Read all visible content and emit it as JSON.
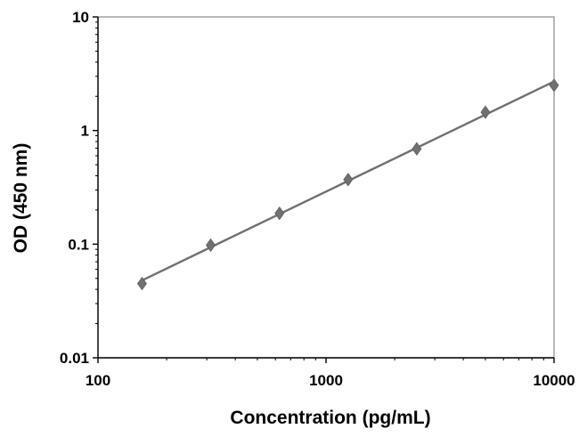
{
  "chart_data": {
    "type": "scatter",
    "title": "",
    "xlabel": "Concentration (pg/mL)",
    "ylabel": "OD (450 nm)",
    "x_scale": "log",
    "y_scale": "log",
    "xlim": [
      100,
      10000
    ],
    "ylim": [
      0.01,
      10
    ],
    "x_ticks": [
      {
        "value": 100,
        "label": "100"
      },
      {
        "value": 1000,
        "label": "1000"
      },
      {
        "value": 10000,
        "label": "10000"
      }
    ],
    "y_ticks": [
      {
        "value": 0.01,
        "label": "0.01"
      },
      {
        "value": 0.1,
        "label": "0.1"
      },
      {
        "value": 1,
        "label": "1"
      },
      {
        "value": 10,
        "label": "10"
      }
    ],
    "grid": false,
    "legend": false,
    "series": [
      {
        "marker": "diamond",
        "color": "#707070",
        "points": [
          {
            "x": 156,
            "y": 0.045
          },
          {
            "x": 312,
            "y": 0.098
          },
          {
            "x": 625,
            "y": 0.187
          },
          {
            "x": 1250,
            "y": 0.37
          },
          {
            "x": 2500,
            "y": 0.69
          },
          {
            "x": 5000,
            "y": 1.45
          },
          {
            "x": 10000,
            "y": 2.5
          }
        ],
        "trendline": {
          "type": "power",
          "from": {
            "x": 156,
            "y": 0.048
          },
          "to": {
            "x": 10000,
            "y": 2.7
          }
        }
      }
    ],
    "colors": {
      "axis": "#000000",
      "plot_border": "#888888",
      "series": "#707070"
    }
  }
}
